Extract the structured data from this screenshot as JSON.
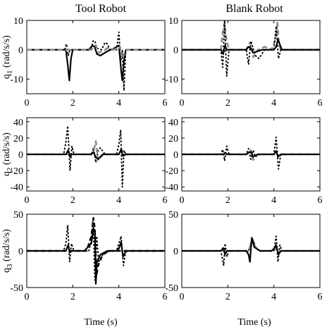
{
  "figure": {
    "column_titles": [
      "Tool Robot",
      "Blank Robot"
    ],
    "xlabel": "Time (s)"
  },
  "chart_data": [
    {
      "type": "line",
      "panel": "q1-tool",
      "row": 0,
      "col": 0,
      "title": "Tool Robot",
      "xlabel": "",
      "ylabel_parts": {
        "main": "q",
        "sub": "1",
        "unit": " (rad/s/s)"
      },
      "xlim": [
        0,
        6
      ],
      "ylim": [
        -15,
        10
      ],
      "xticks": [
        0,
        2,
        4,
        6
      ],
      "yticks": [
        -10,
        0,
        10
      ],
      "series": [
        {
          "style": "solid-black",
          "x": [
            0,
            1.7,
            1.78,
            1.85,
            1.92,
            2.0,
            2.7,
            2.85,
            2.95,
            3.05,
            3.2,
            3.5,
            3.8,
            4.0,
            4.1,
            4.15,
            4.22,
            4.3,
            6
          ],
          "y": [
            0,
            0,
            -5,
            -10.5,
            -3,
            0,
            0,
            1.5,
            1,
            -1.5,
            -2,
            -0.5,
            0.5,
            1.5,
            -7,
            -10.5,
            -4,
            0,
            0
          ]
        },
        {
          "style": "dotted-black",
          "x": [
            0,
            1.65,
            1.72,
            1.8,
            1.88,
            1.95,
            2.05,
            2.8,
            2.88,
            2.96,
            3.05,
            3.25,
            3.4,
            3.5,
            3.6,
            3.9,
            4.0,
            4.08,
            4.15,
            4.22,
            4.3,
            6
          ],
          "y": [
            0,
            0,
            2,
            -2,
            0,
            0,
            0,
            0,
            3,
            3,
            0.5,
            0,
            2.5,
            2,
            0,
            0,
            6,
            -4,
            0,
            -14,
            0,
            0
          ]
        },
        {
          "style": "dashed-gray",
          "x": [
            0,
            2.8,
            2.9,
            3.0,
            3.1,
            3.3,
            3.5,
            3.9,
            4.05,
            4.15,
            4.3,
            6
          ],
          "y": [
            0,
            0,
            1,
            1.5,
            -1,
            -0.5,
            0.5,
            0,
            1,
            -3,
            0,
            0
          ]
        }
      ]
    },
    {
      "type": "line",
      "panel": "q1-blank",
      "row": 0,
      "col": 1,
      "title": "Blank Robot",
      "xlabel": "",
      "xlim": [
        0,
        6
      ],
      "ylim": [
        -15,
        10
      ],
      "xticks": [
        0,
        2,
        4,
        6
      ],
      "yticks": [
        -10,
        0,
        10
      ],
      "series": [
        {
          "style": "dashed-gray",
          "x": [
            0,
            1.6,
            1.7,
            1.78,
            1.85,
            1.95,
            2.05,
            2.8,
            2.9,
            3.0,
            3.1,
            3.3,
            3.6,
            3.9,
            4.0,
            4.1,
            4.15,
            4.22,
            4.3,
            6
          ],
          "y": [
            0,
            0,
            0,
            6,
            9,
            3,
            0,
            0,
            2,
            2.5,
            -2.5,
            0,
            1,
            0,
            2,
            5,
            9.5,
            2,
            0,
            0
          ]
        },
        {
          "style": "dotted-black",
          "x": [
            0,
            1.7,
            1.78,
            1.86,
            1.95,
            2.05,
            2.8,
            2.9,
            3.0,
            3.2,
            3.35,
            3.6,
            4.0,
            4.1,
            4.2,
            4.3,
            6
          ],
          "y": [
            0,
            0,
            -6,
            10,
            -9,
            0,
            0,
            -5,
            3,
            -2,
            -3,
            0,
            0,
            8,
            -3,
            0,
            0
          ]
        },
        {
          "style": "solid-black",
          "x": [
            0,
            1.7,
            1.8,
            1.88,
            1.95,
            2.8,
            2.9,
            3.0,
            3.1,
            3.5,
            4.0,
            4.1,
            4.18,
            4.25,
            4.35,
            6
          ],
          "y": [
            0,
            0,
            -1.5,
            1.5,
            0,
            0,
            1,
            0.5,
            -1,
            0,
            0,
            1,
            3.5,
            2,
            0,
            0
          ]
        }
      ]
    },
    {
      "type": "line",
      "panel": "q2-tool",
      "row": 1,
      "col": 0,
      "xlabel": "",
      "ylabel_parts": {
        "main": "q",
        "sub": "2",
        "unit": " (rad/s/s)"
      },
      "xlim": [
        0,
        6
      ],
      "ylim": [
        -45,
        45
      ],
      "xticks": [
        0,
        2,
        4,
        6
      ],
      "yticks": [
        -40,
        -20,
        0,
        20,
        40
      ],
      "series": [
        {
          "style": "dotted-black",
          "x": [
            0,
            1.6,
            1.7,
            1.78,
            1.88,
            1.96,
            2.05,
            2.8,
            2.9,
            3.0,
            3.1,
            3.2,
            3.4,
            3.9,
            4.0,
            4.08,
            4.15,
            4.22,
            4.3,
            6
          ],
          "y": [
            0,
            0,
            15,
            35,
            -20,
            10,
            0,
            0,
            8,
            -10,
            5,
            8,
            0,
            0,
            12,
            30,
            -40,
            5,
            0,
            0
          ]
        },
        {
          "style": "dashed-gray",
          "x": [
            0,
            2.8,
            2.9,
            3.0,
            3.1,
            3.2,
            3.4,
            4.0,
            4.15,
            4.3,
            6
          ],
          "y": [
            0,
            0,
            4,
            16,
            -8,
            -3,
            0,
            0,
            5,
            0,
            0
          ]
        },
        {
          "style": "solid-black",
          "x": [
            0,
            1.7,
            1.8,
            1.88,
            1.95,
            2.8,
            2.9,
            3.0,
            3.1,
            3.3,
            4.0,
            4.1,
            4.18,
            4.3,
            6
          ],
          "y": [
            0,
            0,
            5,
            -3,
            0,
            0,
            3,
            -4,
            -6,
            0,
            0,
            6,
            -2,
            0,
            0
          ]
        }
      ]
    },
    {
      "type": "line",
      "panel": "q2-blank",
      "row": 1,
      "col": 1,
      "xlabel": "",
      "xlim": [
        0,
        6
      ],
      "ylim": [
        -45,
        45
      ],
      "xticks": [
        0,
        2,
        4,
        6
      ],
      "yticks": [
        -40,
        -20,
        0,
        20,
        40
      ],
      "series": [
        {
          "style": "dotted-black",
          "x": [
            0,
            1.7,
            1.78,
            1.86,
            1.95,
            2.05,
            2.8,
            2.9,
            3.0,
            3.1,
            3.2,
            3.4,
            4.0,
            4.1,
            4.2,
            4.3,
            6
          ],
          "y": [
            0,
            0,
            6,
            -8,
            10,
            0,
            0,
            7,
            -6,
            5,
            -3,
            0,
            0,
            21,
            -18,
            0,
            0
          ]
        },
        {
          "style": "dashed-gray",
          "x": [
            0,
            2.8,
            2.9,
            3.0,
            3.1,
            3.3,
            4.0,
            4.1,
            4.2,
            4.3,
            6
          ],
          "y": [
            0,
            0,
            3,
            5,
            -7,
            0,
            0,
            3,
            -2,
            0,
            0
          ]
        },
        {
          "style": "solid-black",
          "x": [
            0,
            1.8,
            1.88,
            1.95,
            2.8,
            2.9,
            3.0,
            3.1,
            3.3,
            4.0,
            4.1,
            4.18,
            4.3,
            6
          ],
          "y": [
            0,
            0,
            2,
            0,
            0,
            2,
            3,
            -3,
            0,
            0,
            4,
            -3,
            0,
            0
          ]
        }
      ]
    },
    {
      "type": "line",
      "panel": "q3-tool",
      "row": 2,
      "col": 0,
      "ylabel_parts": {
        "main": "q",
        "sub": "3",
        "unit": " (rad/s/s)"
      },
      "xlabel": "Time (s)",
      "xlim": [
        0,
        6
      ],
      "ylim": [
        -50,
        50
      ],
      "xticks": [
        0,
        2,
        4,
        6
      ],
      "yticks": [
        -50,
        0,
        50
      ],
      "series": [
        {
          "style": "dotted-black",
          "x": [
            0,
            1.6,
            1.7,
            1.78,
            1.86,
            1.94,
            2.05,
            2.7,
            2.8,
            2.88,
            2.96,
            3.04,
            3.12,
            3.3,
            3.6,
            3.9,
            4.0,
            4.1,
            4.2,
            4.3,
            6
          ],
          "y": [
            0,
            0,
            10,
            35,
            -15,
            10,
            0,
            0,
            15,
            45,
            -40,
            20,
            -15,
            -5,
            0,
            0,
            10,
            20,
            -20,
            0,
            0
          ]
        },
        {
          "style": "dashed-black",
          "x": [
            0,
            2.6,
            2.8,
            2.9,
            2.96,
            3.02,
            3.1,
            3.3,
            3.6,
            6
          ],
          "y": [
            0,
            0,
            20,
            45,
            30,
            -35,
            -20,
            -5,
            0,
            0
          ]
        },
        {
          "style": "solid-black",
          "x": [
            0,
            1.7,
            1.8,
            1.86,
            1.95,
            2.5,
            2.8,
            2.9,
            2.96,
            3.0,
            3.05,
            3.2,
            3.5,
            3.9,
            4.0,
            4.1,
            4.18,
            4.26,
            4.35,
            6
          ],
          "y": [
            0,
            0,
            8,
            -2,
            0,
            0,
            10,
            30,
            28,
            -45,
            -15,
            -5,
            0,
            0,
            3,
            12,
            -8,
            -3,
            0,
            0
          ]
        }
      ]
    },
    {
      "type": "line",
      "panel": "q3-blank",
      "row": 2,
      "col": 1,
      "xlabel": "Time (s)",
      "xlim": [
        0,
        6
      ],
      "ylim": [
        -50,
        50
      ],
      "xticks": [
        0,
        2,
        4,
        6
      ],
      "yticks": [
        -50,
        0,
        50
      ],
      "series": [
        {
          "style": "dotted-black",
          "x": [
            0,
            1.7,
            1.76,
            1.82,
            1.88,
            1.96,
            2.05,
            2.9,
            3.0,
            3.1,
            3.2,
            3.35,
            4.0,
            4.1,
            4.18,
            4.26,
            4.35,
            6
          ],
          "y": [
            0,
            0,
            -10,
            -20,
            10,
            -8,
            0,
            0,
            10,
            15,
            5,
            0,
            0,
            20,
            -15,
            8,
            0,
            0
          ]
        },
        {
          "style": "dashed-gray",
          "x": [
            0,
            2.9,
            3.0,
            3.08,
            3.2,
            3.4,
            4.0,
            4.1,
            4.2,
            4.3,
            6
          ],
          "y": [
            0,
            0,
            10,
            16,
            5,
            0,
            0,
            4,
            -3,
            0,
            0
          ]
        },
        {
          "style": "solid-black",
          "x": [
            0,
            1.7,
            1.8,
            1.88,
            1.95,
            2.8,
            2.9,
            2.96,
            3.04,
            3.15,
            3.4,
            3.9,
            4.0,
            4.1,
            4.2,
            4.3,
            6
          ],
          "y": [
            0,
            0,
            4,
            -5,
            0,
            0,
            -5,
            -15,
            18,
            5,
            0,
            0,
            3,
            8,
            -5,
            0,
            0
          ]
        }
      ]
    }
  ]
}
